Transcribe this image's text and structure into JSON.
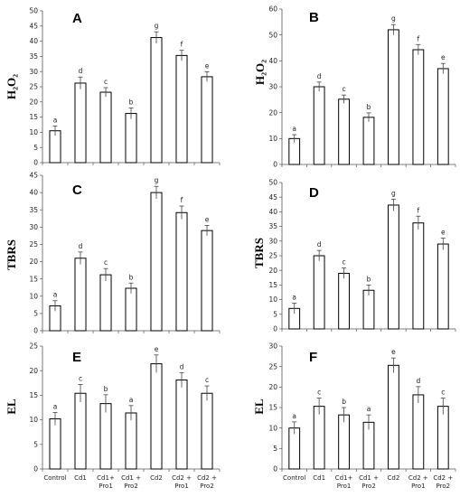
{
  "chart_data": [
    {
      "type": "bar",
      "panel": "A",
      "ylabel": "H₂O₂",
      "categories": [
        "Control",
        "Cd1",
        "Cd1+Pro1",
        "Cd1+Pro2",
        "Cd2",
        "Cd2+Pro1",
        "Cd2+Pro2"
      ],
      "values": [
        10.5,
        26.2,
        23.2,
        16.2,
        41.2,
        35.3,
        28.3
      ],
      "errors": [
        1.6,
        2.0,
        1.5,
        1.8,
        1.9,
        1.7,
        1.6
      ],
      "letters": [
        "a",
        "d",
        "c",
        "b",
        "g",
        "f",
        "e"
      ],
      "ylim": [
        0,
        50
      ],
      "yticks": [
        0,
        5,
        10,
        15,
        20,
        25,
        30,
        35,
        40,
        45,
        50
      ],
      "show_categories": false
    },
    {
      "type": "bar",
      "panel": "B",
      "ylabel": "H₂O₂",
      "categories": [
        "Control",
        "Cd1",
        "Cd1+Pro1",
        "Cd1+Pro2",
        "Cd2",
        "Cd2+Pro1",
        "Cd2+Pro2"
      ],
      "values": [
        10.0,
        30.0,
        25.2,
        18.2,
        52.0,
        44.3,
        37.0
      ],
      "errors": [
        1.5,
        1.8,
        1.6,
        1.7,
        2.0,
        2.0,
        2.0
      ],
      "letters": [
        "a",
        "d",
        "c",
        "b",
        "g",
        "f",
        "e"
      ],
      "ylim": [
        0,
        60
      ],
      "yticks": [
        0,
        10,
        20,
        30,
        40,
        50,
        60
      ],
      "show_categories": false
    },
    {
      "type": "bar",
      "panel": "C",
      "ylabel": "TBRS",
      "categories": [
        "Control",
        "Cd1",
        "Cd1+Pro1",
        "Cd1+Pro2",
        "Cd2",
        "Cd2+Pro1",
        "Cd2+Pro2"
      ],
      "values": [
        7.2,
        21.0,
        16.2,
        12.3,
        40.0,
        34.2,
        29.0
      ],
      "errors": [
        1.5,
        1.8,
        1.8,
        1.5,
        1.8,
        1.9,
        1.5
      ],
      "letters": [
        "a",
        "d",
        "c",
        "b",
        "g",
        "f",
        "e"
      ],
      "ylim": [
        0,
        45
      ],
      "yticks": [
        0,
        5,
        10,
        15,
        20,
        25,
        30,
        35,
        40,
        45
      ],
      "show_categories": false
    },
    {
      "type": "bar",
      "panel": "D",
      "ylabel": "TBRS",
      "categories": [
        "Control",
        "Cd1",
        "Cd1+Pro1",
        "Cd1+Pro2",
        "Cd2",
        "Cd2+Pro1",
        "Cd2+Pro2"
      ],
      "values": [
        7.0,
        25.0,
        19.0,
        13.2,
        42.3,
        36.2,
        29.0
      ],
      "errors": [
        1.8,
        1.8,
        1.8,
        1.8,
        2.0,
        2.3,
        2.0
      ],
      "letters": [
        "a",
        "d",
        "c",
        "b",
        "g",
        "f",
        "e"
      ],
      "ylim": [
        0,
        50
      ],
      "yticks": [
        0,
        5,
        10,
        15,
        20,
        25,
        30,
        35,
        40,
        45,
        50
      ],
      "show_categories": false
    },
    {
      "type": "bar",
      "panel": "E",
      "ylabel": "EL",
      "categories": [
        "Control",
        "Cd1",
        "Cd1+ Pro1",
        "Cd1 + Pro2",
        "Cd2",
        "Cd2 +Pro1",
        "Cd2 +Pro2"
      ],
      "values": [
        10.2,
        15.4,
        13.3,
        11.4,
        21.4,
        18.1,
        15.4
      ],
      "errors": [
        1.3,
        1.8,
        1.8,
        1.5,
        1.8,
        1.5,
        1.5
      ],
      "letters": [
        "a",
        "c",
        "b",
        "a",
        "e",
        "d",
        "c"
      ],
      "ylim": [
        0,
        25
      ],
      "yticks": [
        0,
        5,
        10,
        15,
        20,
        25
      ],
      "show_categories": true
    },
    {
      "type": "bar",
      "panel": "F",
      "ylabel": "EL",
      "categories": [
        "Control",
        "Cd1",
        "Cd1+ Pro1",
        "Cd1 + Pro2",
        "Cd2",
        "Cd2 +Pro1",
        "Cd2 +Pro2"
      ],
      "values": [
        10.0,
        15.3,
        13.2,
        11.4,
        25.3,
        18.1,
        15.3
      ],
      "errors": [
        1.5,
        2.0,
        1.8,
        1.8,
        1.8,
        2.0,
        2.0
      ],
      "letters": [
        "a",
        "c",
        "b",
        "a",
        "e",
        "d",
        "c"
      ],
      "ylim": [
        0,
        30
      ],
      "yticks": [
        0,
        5,
        10,
        15,
        20,
        25,
        30
      ],
      "show_categories": true
    }
  ]
}
